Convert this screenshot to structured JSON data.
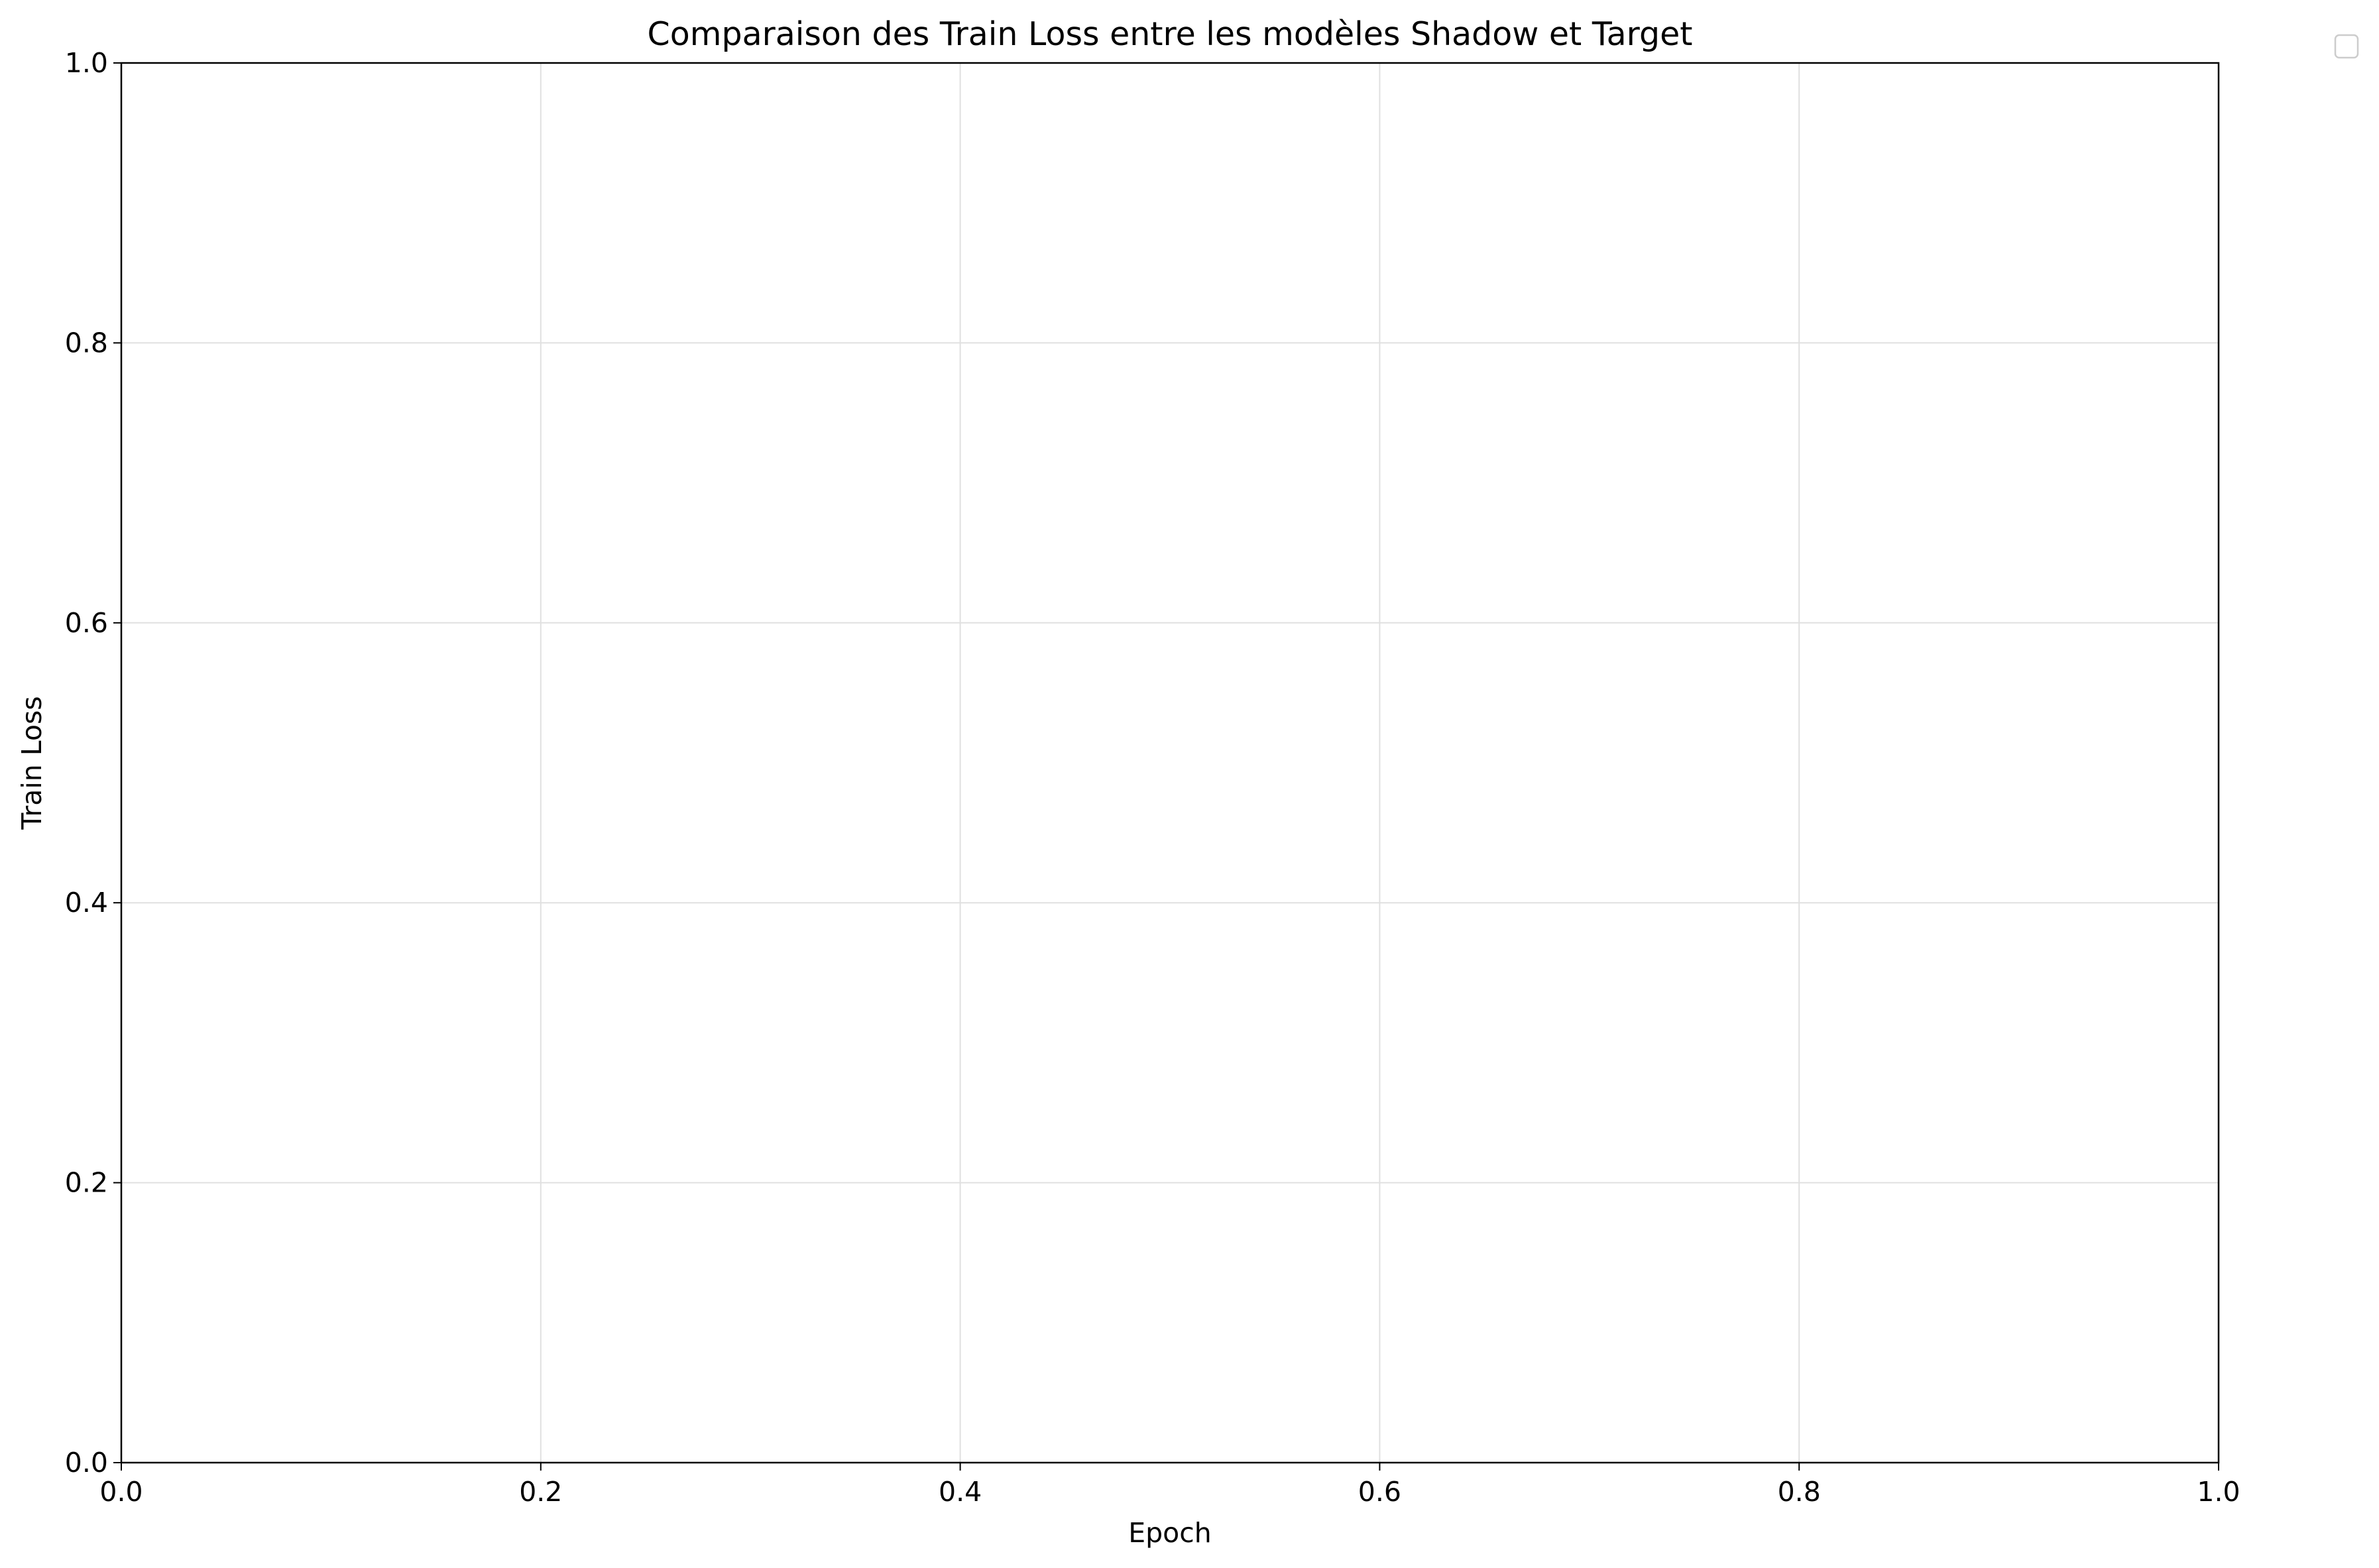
{
  "chart_data": {
    "type": "line",
    "title": "Comparaison des Train Loss entre les modèles Shadow et Target",
    "xlabel": "Epoch",
    "ylabel": "Train Loss",
    "xlim": [
      0.0,
      1.0
    ],
    "ylim": [
      0.0,
      1.0
    ],
    "xticks": [
      "0.0",
      "0.2",
      "0.4",
      "0.6",
      "0.8",
      "1.0"
    ],
    "yticks": [
      "0.0",
      "0.2",
      "0.4",
      "0.6",
      "0.8",
      "1.0"
    ],
    "grid": true,
    "legend": {
      "position": "outside-top-right",
      "entries": []
    },
    "series": []
  },
  "colors": {
    "grid": "#e0e0e0",
    "axes": "#000000",
    "background": "#ffffff"
  }
}
